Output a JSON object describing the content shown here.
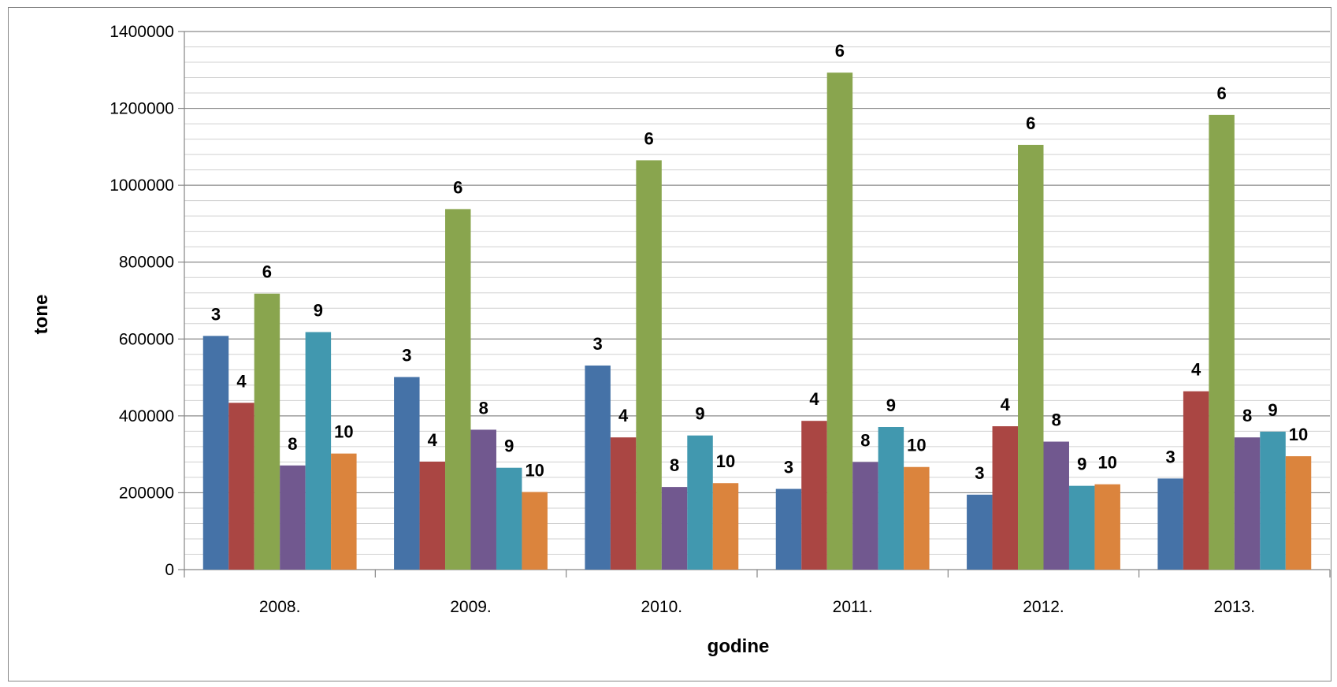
{
  "chart_data": {
    "type": "bar",
    "categories": [
      "2008.",
      "2009.",
      "2010.",
      "2011.",
      "2012.",
      "2013."
    ],
    "xlabel": "godine",
    "ylabel": "tone",
    "ylim": [
      0,
      1400000
    ],
    "y_major_ticks": [
      0,
      200000,
      400000,
      600000,
      800000,
      1000000,
      1200000,
      1400000
    ],
    "y_minor_step": 40000,
    "grid": true,
    "series": [
      {
        "label": "3",
        "color": "#4572A7",
        "values": [
          608000,
          501000,
          531000,
          210000,
          195000,
          237000
        ]
      },
      {
        "label": "4",
        "color": "#AA4643",
        "values": [
          434000,
          281000,
          344000,
          387000,
          373000,
          464000
        ]
      },
      {
        "label": "6",
        "color": "#89A54E",
        "values": [
          718000,
          938000,
          1065000,
          1293000,
          1105000,
          1183000
        ]
      },
      {
        "label": "8",
        "color": "#71588F",
        "values": [
          271000,
          364000,
          215000,
          280000,
          333000,
          344000
        ]
      },
      {
        "label": "9",
        "color": "#4198AF",
        "values": [
          618000,
          265000,
          349000,
          371000,
          218000,
          359000
        ]
      },
      {
        "label": "10",
        "color": "#DB843D",
        "values": [
          302000,
          202000,
          225000,
          267000,
          222000,
          295000
        ]
      }
    ]
  }
}
